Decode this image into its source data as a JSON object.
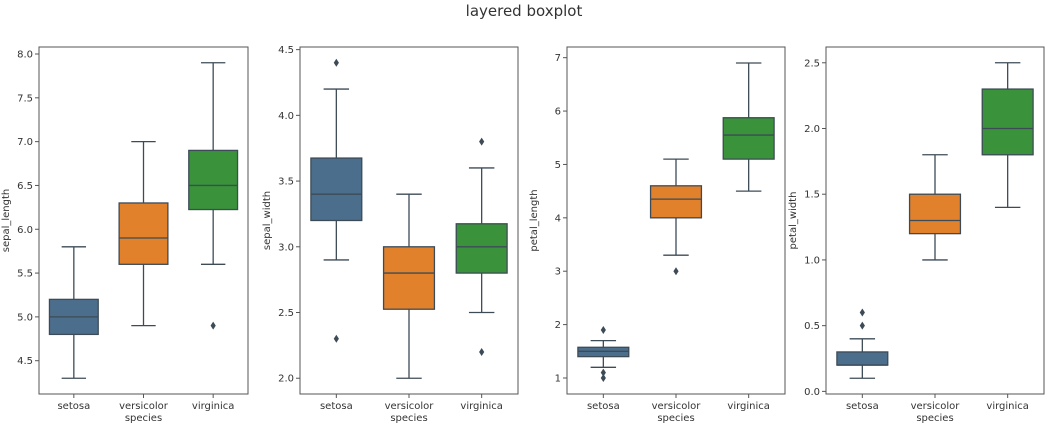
{
  "title": "layered boxplot",
  "chart_data": [
    {
      "type": "box",
      "xlabel": "species",
      "ylabel": "sepal_length",
      "categories": [
        "setosa",
        "versicolor",
        "virginica"
      ],
      "ylim": [
        4.12,
        8.08
      ],
      "yticks": [
        4.5,
        5.0,
        5.5,
        6.0,
        6.5,
        7.0,
        7.5,
        8.0
      ],
      "ytick_labels": [
        "4.5",
        "5.0",
        "5.5",
        "6.0",
        "6.5",
        "7.0",
        "7.5",
        "8.0"
      ],
      "boxes": [
        {
          "whislo": 4.3,
          "q1": 4.8,
          "med": 5.0,
          "q3": 5.2,
          "whishi": 5.8,
          "fliers": []
        },
        {
          "whislo": 4.9,
          "q1": 5.6,
          "med": 5.9,
          "q3": 6.3,
          "whishi": 7.0,
          "fliers": []
        },
        {
          "whislo": 5.6,
          "q1": 6.225,
          "med": 6.5,
          "q3": 6.9,
          "whishi": 7.9,
          "fliers": [
            4.9
          ]
        }
      ]
    },
    {
      "type": "box",
      "xlabel": "species",
      "ylabel": "sepal_width",
      "categories": [
        "setosa",
        "versicolor",
        "virginica"
      ],
      "ylim": [
        1.88,
        4.52
      ],
      "yticks": [
        2.0,
        2.5,
        3.0,
        3.5,
        4.0,
        4.5
      ],
      "ytick_labels": [
        "2.0",
        "2.5",
        "3.0",
        "3.5",
        "4.0",
        "4.5"
      ],
      "boxes": [
        {
          "whislo": 2.9,
          "q1": 3.2,
          "med": 3.4,
          "q3": 3.675,
          "whishi": 4.2,
          "fliers": [
            4.4,
            2.3
          ]
        },
        {
          "whislo": 2.0,
          "q1": 2.525,
          "med": 2.8,
          "q3": 3.0,
          "whishi": 3.4,
          "fliers": []
        },
        {
          "whislo": 2.5,
          "q1": 2.8,
          "med": 3.0,
          "q3": 3.175,
          "whishi": 3.6,
          "fliers": [
            3.8,
            2.2
          ]
        }
      ]
    },
    {
      "type": "box",
      "xlabel": "species",
      "ylabel": "petal_length",
      "categories": [
        "setosa",
        "versicolor",
        "virginica"
      ],
      "ylim": [
        0.7,
        7.2
      ],
      "yticks": [
        1,
        2,
        3,
        4,
        5,
        6,
        7
      ],
      "ytick_labels": [
        "1",
        "2",
        "3",
        "4",
        "5",
        "6",
        "7"
      ],
      "boxes": [
        {
          "whislo": 1.2,
          "q1": 1.4,
          "med": 1.5,
          "q3": 1.575,
          "whishi": 1.7,
          "fliers": [
            1.9,
            1.1,
            1.0
          ]
        },
        {
          "whislo": 3.3,
          "q1": 4.0,
          "med": 4.35,
          "q3": 4.6,
          "whishi": 5.1,
          "fliers": [
            3.0
          ]
        },
        {
          "whislo": 4.5,
          "q1": 5.1,
          "med": 5.55,
          "q3": 5.875,
          "whishi": 6.9,
          "fliers": []
        }
      ]
    },
    {
      "type": "box",
      "xlabel": "species",
      "ylabel": "petal_width",
      "categories": [
        "setosa",
        "versicolor",
        "virginica"
      ],
      "ylim": [
        -0.02,
        2.62
      ],
      "yticks": [
        0.0,
        0.5,
        1.0,
        1.5,
        2.0,
        2.5
      ],
      "ytick_labels": [
        "0.0",
        "0.5",
        "1.0",
        "1.5",
        "2.0",
        "2.5"
      ],
      "boxes": [
        {
          "whislo": 0.1,
          "q1": 0.2,
          "med": 0.2,
          "q3": 0.3,
          "whishi": 0.4,
          "fliers": [
            0.6,
            0.5
          ]
        },
        {
          "whislo": 1.0,
          "q1": 1.2,
          "med": 1.3,
          "q3": 1.5,
          "whishi": 1.8,
          "fliers": []
        },
        {
          "whislo": 1.4,
          "q1": 1.8,
          "med": 2.0,
          "q3": 2.3,
          "whishi": 2.5,
          "fliers": []
        }
      ]
    }
  ],
  "colors": {
    "setosa": "#4c6e8d",
    "versicolor": "#e1812c",
    "virginica": "#3a923a",
    "line": "#3d4b57"
  }
}
